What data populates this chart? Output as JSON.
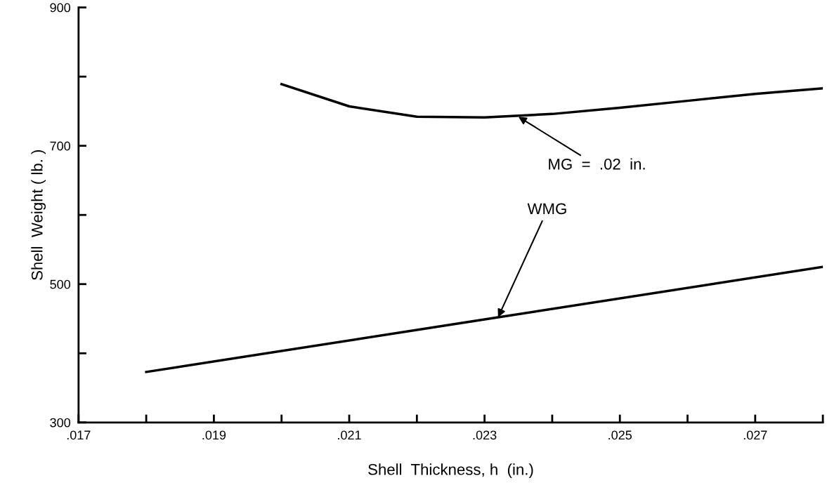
{
  "chart_data": {
    "type": "line",
    "xlabel": "Shell  Thickness, h  (in.)",
    "ylabel": "Shell  Weight ( lb. )",
    "xlim": [
      0.017,
      0.028
    ],
    "ylim": [
      300,
      900
    ],
    "xticks": [
      {
        "value": 0.017,
        "label": ".017"
      },
      {
        "value": 0.018,
        "label": null
      },
      {
        "value": 0.019,
        "label": ".019"
      },
      {
        "value": 0.02,
        "label": null
      },
      {
        "value": 0.021,
        "label": ".021"
      },
      {
        "value": 0.022,
        "label": null
      },
      {
        "value": 0.023,
        "label": ".023"
      },
      {
        "value": 0.024,
        "label": null
      },
      {
        "value": 0.025,
        "label": ".025"
      },
      {
        "value": 0.026,
        "label": null
      },
      {
        "value": 0.027,
        "label": ".027"
      },
      {
        "value": 0.028,
        "label": null
      }
    ],
    "yticks": [
      300,
      {
        "value": 400,
        "label": null
      },
      500,
      {
        "value": 600,
        "label": null
      },
      700,
      {
        "value": 800,
        "label": null
      },
      900
    ],
    "grid": false,
    "legend": false,
    "marker": "none",
    "line_style": "solid",
    "series": [
      {
        "color": "#000000",
        "x": [
          0.02,
          0.021,
          0.022,
          0.023,
          0.024,
          0.025,
          0.026,
          0.027,
          0.028
        ],
        "values": [
          789,
          757,
          742,
          741,
          746,
          755,
          765,
          775,
          783
        ]
      },
      {
        "color": "#000000",
        "x": [
          0.018,
          0.023,
          0.028
        ],
        "values": [
          373,
          449,
          525
        ]
      }
    ],
    "annotations": [
      {
        "text": "MG  =  .02  in.",
        "x": 0.0235,
        "y": 742
      },
      {
        "text": "WMG",
        "x": 0.0232,
        "y": 452
      }
    ]
  }
}
